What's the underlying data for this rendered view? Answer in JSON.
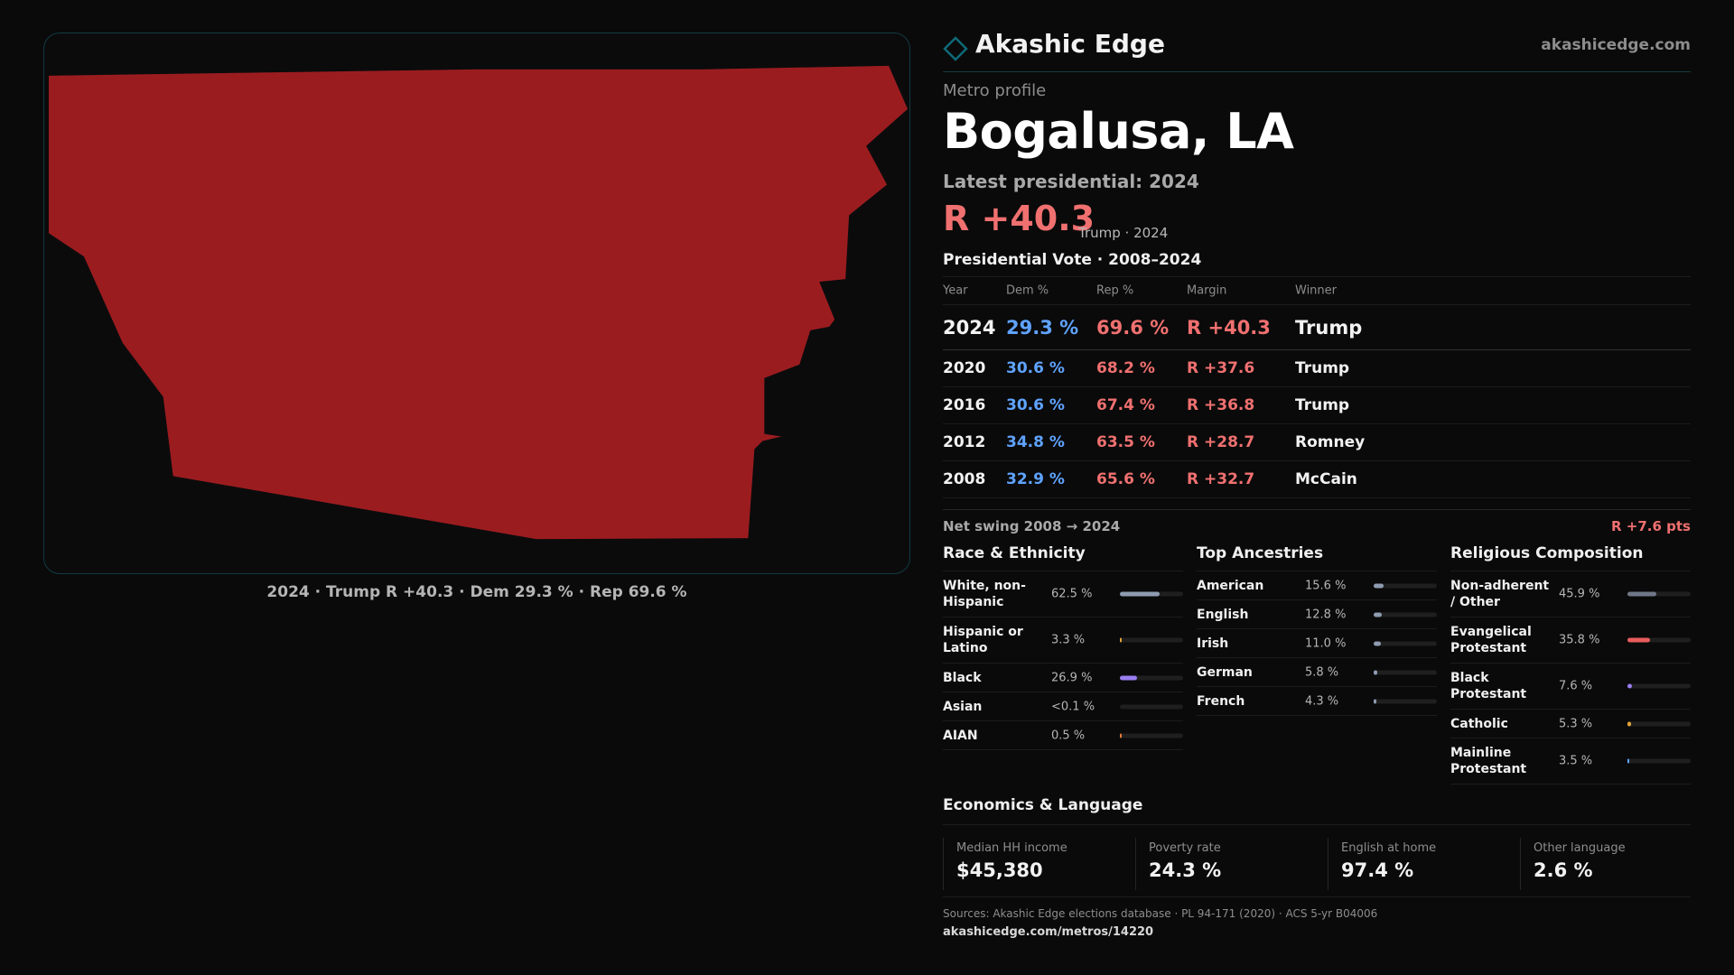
{
  "map": {
    "caption": "2024 · Trump R +40.3 · Dem 29.3 % · Rep 69.6 %",
    "fill_color": "#9b1c1f"
  },
  "brand": {
    "name": "Akashic Edge",
    "url": "akashicedge.com",
    "icon": "diamond-icon",
    "accent": "#0e6a78"
  },
  "header": {
    "eyebrow": "Metro profile",
    "title": "Bogalusa, LA",
    "latest_label": "Latest presidential: 2024",
    "headline_margin": "R +40.3",
    "headline_note": "Trump · 2024"
  },
  "vote_table": {
    "title": "Presidential Vote · 2008–2024",
    "columns": [
      "Year",
      "Dem %",
      "Rep %",
      "Margin",
      "Winner"
    ],
    "rows": [
      {
        "year": "2024",
        "dem": "29.3 %",
        "rep": "69.6 %",
        "margin": "R +40.3",
        "winner": "Trump"
      },
      {
        "year": "2020",
        "dem": "30.6 %",
        "rep": "68.2 %",
        "margin": "R +37.6",
        "winner": "Trump"
      },
      {
        "year": "2016",
        "dem": "30.6 %",
        "rep": "67.4 %",
        "margin": "R +36.8",
        "winner": "Trump"
      },
      {
        "year": "2012",
        "dem": "34.8 %",
        "rep": "63.5 %",
        "margin": "R +28.7",
        "winner": "Romney"
      },
      {
        "year": "2008",
        "dem": "32.9 %",
        "rep": "65.6 %",
        "margin": "R +32.7",
        "winner": "McCain"
      }
    ],
    "dem_color": "#5fa3ff",
    "rep_color": "#f07070"
  },
  "swing": {
    "label": "Net swing 2008 → 2024",
    "value": "R +7.6 pts"
  },
  "race": {
    "title": "Race & Ethnicity",
    "rows": [
      {
        "label": "White, non-Hispanic",
        "pct": "62.5 %",
        "share": 0.625,
        "color": "#8e9bb0"
      },
      {
        "label": "Hispanic or Latino",
        "pct": "3.3 %",
        "share": 0.033,
        "color": "#e0a43a"
      },
      {
        "label": "Black",
        "pct": "26.9 %",
        "share": 0.269,
        "color": "#9a7ef0"
      },
      {
        "label": "Asian",
        "pct": "<0.1 %",
        "share": 0.0,
        "color": "#5fa3ff"
      },
      {
        "label": "AIAN",
        "pct": "0.5 %",
        "share": 0.005,
        "color": "#e07a3a"
      }
    ]
  },
  "ancestry": {
    "title": "Top Ancestries",
    "rows": [
      {
        "label": "American",
        "pct": "15.6 %",
        "share": 0.156,
        "color": "#8e9bb0"
      },
      {
        "label": "English",
        "pct": "12.8 %",
        "share": 0.128,
        "color": "#8e9bb0"
      },
      {
        "label": "Irish",
        "pct": "11.0 %",
        "share": 0.11,
        "color": "#8e9bb0"
      },
      {
        "label": "German",
        "pct": "5.8 %",
        "share": 0.058,
        "color": "#8e9bb0"
      },
      {
        "label": "French",
        "pct": "4.3 %",
        "share": 0.043,
        "color": "#8e9bb0"
      }
    ]
  },
  "religion": {
    "title": "Religious Composition",
    "rows": [
      {
        "label": "Non-adherent / Other",
        "pct": "45.9 %",
        "share": 0.459,
        "color": "#6f7787"
      },
      {
        "label": "Evangelical Protestant",
        "pct": "35.8 %",
        "share": 0.358,
        "color": "#e85c5c"
      },
      {
        "label": "Black Protestant",
        "pct": "7.6 %",
        "share": 0.076,
        "color": "#9a7ef0"
      },
      {
        "label": "Catholic",
        "pct": "5.3 %",
        "share": 0.053,
        "color": "#e0a43a"
      },
      {
        "label": "Mainline Protestant",
        "pct": "3.5 %",
        "share": 0.035,
        "color": "#5fa3ff"
      }
    ]
  },
  "economics": {
    "title": "Economics & Language",
    "cells": [
      {
        "label": "Median HH income",
        "value": "$45,380"
      },
      {
        "label": "Poverty rate",
        "value": "24.3 %"
      },
      {
        "label": "English at home",
        "value": "97.4 %"
      },
      {
        "label": "Other language",
        "value": "2.6 %"
      }
    ]
  },
  "footer": {
    "sources": "Sources: Akashic Edge elections database · PL 94-171 (2020) · ACS 5-yr B04006",
    "permalink": "akashicedge.com/metros/14220"
  }
}
